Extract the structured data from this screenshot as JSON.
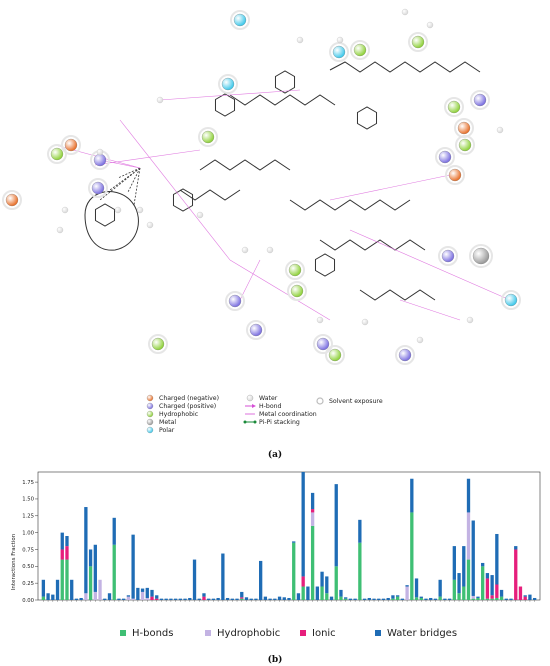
{
  "panel_a": {
    "caption": "(a)",
    "legend": [
      {
        "label": "Charged (negative)",
        "color": "#e8702a",
        "kind": "ball"
      },
      {
        "label": "Charged (positive)",
        "color": "#7b6fe0",
        "kind": "ball"
      },
      {
        "label": "Hydrophobic",
        "color": "#8fd13a",
        "kind": "ball"
      },
      {
        "label": "Metal",
        "color": "#9a9a9a",
        "kind": "ball"
      },
      {
        "label": "Polar",
        "color": "#3fc8ea",
        "kind": "ball"
      },
      {
        "label": "Water",
        "color": "#d9d9d9",
        "kind": "ball"
      },
      {
        "label": "H-bond",
        "color": "#d64fd6",
        "kind": "arrow"
      },
      {
        "label": "Metal coordination",
        "color": "#d64fd6",
        "kind": "line"
      },
      {
        "label": "Pi-Pi stacking",
        "color": "#1a8a3a",
        "kind": "dots"
      },
      {
        "label": "Solvent exposure",
        "color": "#bdbdbd",
        "kind": "halo"
      }
    ]
  },
  "panel_b": {
    "caption": "(b)"
  },
  "chart_data": {
    "type": "bar",
    "stacked": true,
    "ylabel": "Interactions Fraction",
    "ylim": [
      0,
      1.9
    ],
    "yticks": [
      0.0,
      0.25,
      0.5,
      0.75,
      1.0,
      1.25,
      1.5,
      1.75
    ],
    "ytick_labels": [
      "0.00",
      "0.25",
      "0.50",
      "0.75",
      "1.00",
      "1.25",
      "1.50",
      "1.75"
    ],
    "legend_position": "bottom",
    "series": [
      {
        "name": "H-bonds",
        "color": "#3fbf74",
        "values": [
          0.05,
          0,
          0,
          0,
          0.6,
          0.6,
          0,
          0,
          0,
          0,
          0.5,
          0,
          0,
          0,
          0,
          0.82,
          0,
          0,
          0,
          0,
          0,
          0,
          0,
          0,
          0,
          0,
          0,
          0,
          0,
          0,
          0,
          0,
          0,
          0,
          0,
          0,
          0,
          0,
          0,
          0,
          0,
          0,
          0.02,
          0,
          0,
          0,
          0,
          0,
          0,
          0,
          0,
          0,
          0,
          0.85,
          0,
          0.2,
          0,
          1.1,
          0,
          0.2,
          0.1,
          0,
          0.5,
          0.05,
          0.02,
          0,
          0,
          0.85,
          0,
          0,
          0,
          0,
          0,
          0,
          0.02,
          0.05,
          0,
          0,
          1.3,
          0.04,
          0.03,
          0,
          0,
          0,
          0.05,
          0,
          0,
          0.3,
          0.1,
          0.2,
          0.6,
          0.02,
          0.03,
          0.5,
          0.02,
          0.02,
          0.03,
          0.05,
          0,
          0,
          0,
          0,
          0,
          0,
          0
        ]
      },
      {
        "name": "Hydrophobic",
        "color": "#c3b3e3",
        "values": [
          0,
          0,
          0,
          0,
          0,
          0,
          0,
          0,
          0,
          0.1,
          0,
          0.12,
          0.3,
          0,
          0,
          0,
          0,
          0,
          0.05,
          0.02,
          0,
          0.12,
          0.03,
          0,
          0,
          0,
          0,
          0,
          0,
          0,
          0,
          0,
          0,
          0,
          0,
          0,
          0,
          0,
          0,
          0,
          0,
          0,
          0,
          0,
          0,
          0,
          0,
          0,
          0,
          0,
          0,
          0,
          0,
          0,
          0,
          0,
          0,
          0.2,
          0,
          0,
          0,
          0,
          0,
          0,
          0,
          0,
          0,
          0,
          0,
          0,
          0,
          0,
          0,
          0,
          0,
          0,
          0,
          0.2,
          0,
          0,
          0,
          0,
          0,
          0,
          0,
          0,
          0,
          0,
          0,
          0,
          0.7,
          0.04,
          0,
          0,
          0,
          0,
          0,
          0,
          0,
          0,
          0,
          0,
          0,
          0,
          0
        ]
      },
      {
        "name": "Ionic",
        "color": "#e61f7c",
        "values": [
          0,
          0,
          0,
          0,
          0.15,
          0.2,
          0,
          0,
          0,
          0,
          0,
          0,
          0,
          0,
          0,
          0,
          0,
          0,
          0,
          0,
          0,
          0,
          0,
          0.05,
          0.02,
          0,
          0,
          0,
          0,
          0,
          0,
          0,
          0,
          0,
          0.05,
          0,
          0,
          0,
          0,
          0,
          0,
          0,
          0.02,
          0,
          0,
          0,
          0,
          0,
          0,
          0,
          0,
          0,
          0,
          0,
          0,
          0.15,
          0,
          0.05,
          0,
          0,
          0,
          0,
          0,
          0,
          0,
          0,
          0,
          0,
          0,
          0,
          0,
          0,
          0,
          0,
          0,
          0,
          0,
          0,
          0,
          0,
          0,
          0,
          0,
          0,
          0,
          0,
          0,
          0,
          0,
          0,
          0,
          0,
          0,
          0,
          0.3,
          0.05,
          0.2,
          0,
          0,
          0,
          0.75,
          0.2,
          0.05,
          0,
          0,
          0
        ]
      },
      {
        "name": "Water bridges",
        "color": "#1f6cb5",
        "values": [
          0.25,
          0.1,
          0.08,
          0.3,
          0.25,
          0.15,
          0.3,
          0.02,
          0.03,
          1.28,
          0.25,
          0.7,
          0,
          0.02,
          0.1,
          0.4,
          0.02,
          0.02,
          0.02,
          0.95,
          0.18,
          0.05,
          0.15,
          0.1,
          0.05,
          0.02,
          0.02,
          0.02,
          0.02,
          0.02,
          0.02,
          0.03,
          0.6,
          0.02,
          0.05,
          0.02,
          0.02,
          0.03,
          0.69,
          0.03,
          0.02,
          0.02,
          0.08,
          0.04,
          0.02,
          0.02,
          0.58,
          0.05,
          0.02,
          0.02,
          0.05,
          0.04,
          0.03,
          0.02,
          0.1,
          1.55,
          0.2,
          0.24,
          0.2,
          0.22,
          0.25,
          0.05,
          1.22,
          0.1,
          0.02,
          0.02,
          0.02,
          0.34,
          0.02,
          0.03,
          0.02,
          0.02,
          0.02,
          0.03,
          0.05,
          0.02,
          0.02,
          0.02,
          0.5,
          0.28,
          0.02,
          0.02,
          0.03,
          0.02,
          0.25,
          0.02,
          0.02,
          0.5,
          0.3,
          0.6,
          0.5,
          1.12,
          0.02,
          0.05,
          0.08,
          0.3,
          0.75,
          0.1,
          0.02,
          0.02,
          0.05,
          0,
          0.02,
          0.08,
          0.03
        ]
      }
    ]
  },
  "chart_legend": {
    "items": [
      {
        "label": "H-bonds",
        "color": "#3fbf74"
      },
      {
        "label": "Hydrophobic",
        "color": "#c3b3e3"
      },
      {
        "label": "Ionic",
        "color": "#e61f7c"
      },
      {
        "label": "Water bridges",
        "color": "#1f6cb5"
      }
    ]
  }
}
